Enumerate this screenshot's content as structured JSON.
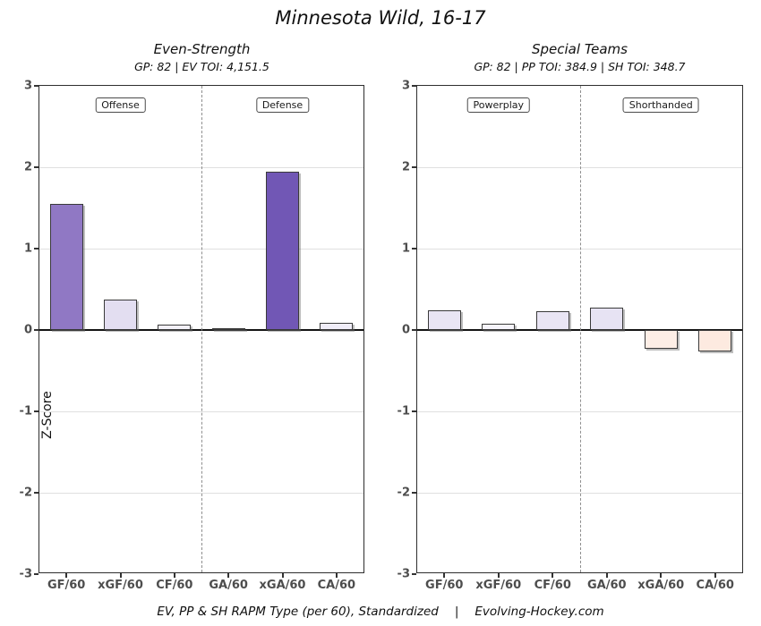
{
  "title": "Minnesota Wild, 16-17",
  "ylabel": "Z-Score",
  "caption": {
    "left": "EV, PP & SH RAPM Type (per 60), Standardized",
    "separator": "|",
    "right": "Evolving-Hockey.com"
  },
  "chart_data": [
    {
      "type": "bar",
      "panel": "even-strength",
      "subtitle": "Even-Strength",
      "info": "GP: 82 | EV TOI: 4,151.5",
      "categories": [
        "GF/60",
        "xGF/60",
        "CF/60",
        "GA/60",
        "xGA/60",
        "CA/60"
      ],
      "values": [
        1.55,
        0.37,
        0.07,
        0.02,
        1.94,
        0.09
      ],
      "bar_colors": [
        "#9078c4",
        "#e3def1",
        "#f3f1f9",
        "#fbfafd",
        "#7157b5",
        "#f0edf8"
      ],
      "section_labels": [
        "Offense",
        "Defense"
      ],
      "ylim": [
        -3,
        3
      ],
      "yticks": [
        3,
        2,
        1,
        0,
        -1,
        -2,
        -3
      ],
      "grid": true,
      "legend": "none",
      "separator": "dashed-vertical-center"
    },
    {
      "type": "bar",
      "panel": "special-teams",
      "subtitle": "Special Teams",
      "info": "GP: 82 | PP TOI: 384.9 | SH TOI: 348.7",
      "categories": [
        "GF/60",
        "xGF/60",
        "CF/60",
        "GA/60",
        "xGA/60",
        "CA/60"
      ],
      "values": [
        0.24,
        0.08,
        0.23,
        0.28,
        -0.23,
        -0.26
      ],
      "bar_colors": [
        "#e9e5f4",
        "#f6f4fb",
        "#e9e5f4",
        "#e7e3f3",
        "#fdeee6",
        "#fdeae0"
      ],
      "section_labels": [
        "Powerplay",
        "Shorthanded"
      ],
      "ylim": [
        -3,
        3
      ],
      "yticks": [
        3,
        2,
        1,
        0,
        -1,
        -2,
        -3
      ],
      "grid": true,
      "legend": "none",
      "separator": "dashed-vertical-center"
    }
  ]
}
